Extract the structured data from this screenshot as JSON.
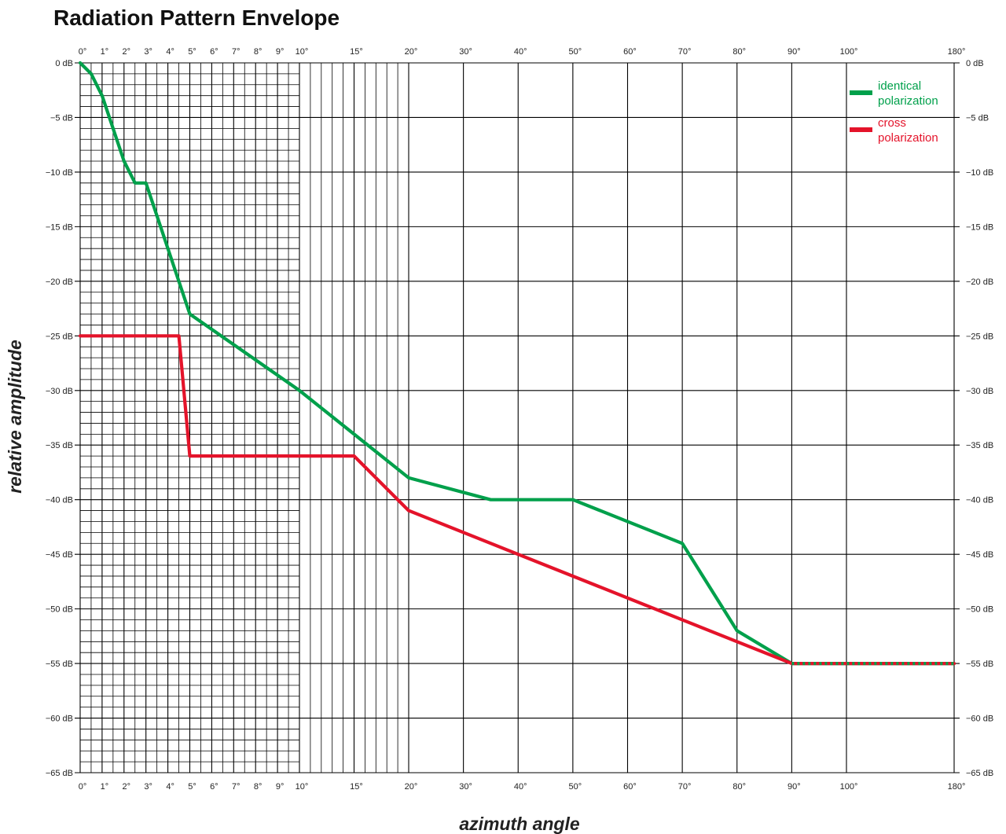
{
  "chart_data": {
    "type": "line",
    "title": "Radiation Pattern Envelope",
    "xlabel": "azimuth angle",
    "ylabel": "relative amplitude",
    "x_unit": "degrees",
    "y_unit": "dB",
    "ylim": [
      -65,
      0
    ],
    "xlim": [
      0,
      180
    ],
    "x_scale": "piecewise: 0-10 per 1°, 10-20 per 5°, 20-100 per 10°, 100-180 compressed",
    "grid": true,
    "legend_position": "top-right",
    "x_ticks": [
      {
        "value": 0,
        "label": "0°"
      },
      {
        "value": 1,
        "label": "1°"
      },
      {
        "value": 2,
        "label": "2°"
      },
      {
        "value": 3,
        "label": "3°"
      },
      {
        "value": 4,
        "label": "4°"
      },
      {
        "value": 5,
        "label": "5°"
      },
      {
        "value": 6,
        "label": "6°"
      },
      {
        "value": 7,
        "label": "7°"
      },
      {
        "value": 8,
        "label": "8°"
      },
      {
        "value": 9,
        "label": "9°"
      },
      {
        "value": 10,
        "label": "10°"
      },
      {
        "value": 15,
        "label": "15°"
      },
      {
        "value": 20,
        "label": "20°"
      },
      {
        "value": 30,
        "label": "30°"
      },
      {
        "value": 40,
        "label": "40°"
      },
      {
        "value": 50,
        "label": "50°"
      },
      {
        "value": 60,
        "label": "60°"
      },
      {
        "value": 70,
        "label": "70°"
      },
      {
        "value": 80,
        "label": "80°"
      },
      {
        "value": 90,
        "label": "90°"
      },
      {
        "value": 100,
        "label": "100°"
      },
      {
        "value": 180,
        "label": "180°"
      }
    ],
    "y_ticks": [
      {
        "value": 0,
        "label": "0 dB"
      },
      {
        "value": -5,
        "label": "−5 dB"
      },
      {
        "value": -10,
        "label": "−10 dB"
      },
      {
        "value": -15,
        "label": "−15 dB"
      },
      {
        "value": -20,
        "label": "−20 dB"
      },
      {
        "value": -25,
        "label": "−25 dB"
      },
      {
        "value": -30,
        "label": "−30 dB"
      },
      {
        "value": -35,
        "label": "−35 dB"
      },
      {
        "value": -40,
        "label": "−40 dB"
      },
      {
        "value": -45,
        "label": "−45 dB"
      },
      {
        "value": -50,
        "label": "−50 dB"
      },
      {
        "value": -55,
        "label": "−55 dB"
      },
      {
        "value": -60,
        "label": "−60 dB"
      },
      {
        "value": -65,
        "label": "−65 dB"
      }
    ],
    "series": [
      {
        "name": "identical\npolarization",
        "legend_lines": [
          "identical",
          "polarization"
        ],
        "color": "#00a04b",
        "points": [
          [
            0,
            0
          ],
          [
            0.5,
            -1
          ],
          [
            1,
            -3
          ],
          [
            2,
            -9
          ],
          [
            2.5,
            -11
          ],
          [
            3,
            -11
          ],
          [
            5,
            -23
          ],
          [
            10,
            -30
          ],
          [
            15,
            -34
          ],
          [
            20,
            -38
          ],
          [
            35,
            -40
          ],
          [
            50,
            -40
          ],
          [
            70,
            -44
          ],
          [
            80,
            -52
          ],
          [
            90,
            -55
          ],
          [
            180,
            -55
          ]
        ]
      },
      {
        "name": "cross\npolarization",
        "legend_lines": [
          "cross",
          "polarization"
        ],
        "color": "#e4132a",
        "points": [
          [
            0,
            -25
          ],
          [
            4.5,
            -25
          ],
          [
            5,
            -36
          ],
          [
            15,
            -36
          ],
          [
            20,
            -41
          ],
          [
            90,
            -55
          ],
          [
            180,
            -55
          ]
        ]
      }
    ]
  }
}
